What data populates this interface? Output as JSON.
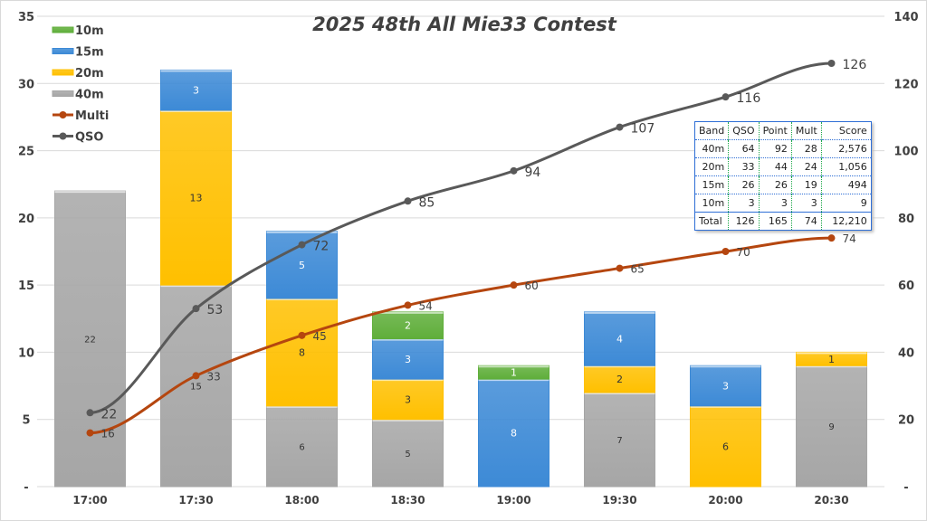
{
  "chart_data": {
    "type": "bar+line",
    "title": "2025 48th All Mie33 Contest",
    "categories": [
      "17:00",
      "17:30",
      "18:00",
      "18:30",
      "19:00",
      "19:30",
      "20:00",
      "20:30"
    ],
    "ylim": [
      0,
      35
    ],
    "y2lim": [
      0,
      140
    ],
    "yticks": [
      "-",
      "5",
      "10",
      "15",
      "20",
      "25",
      "30",
      "35"
    ],
    "y2ticks": [
      "-",
      "20",
      "40",
      "60",
      "80",
      "100",
      "120",
      "140"
    ],
    "grid": true,
    "legend": "top-left",
    "bar_series": [
      {
        "name": "40m",
        "color": "#a6a6a6",
        "values": [
          22,
          15,
          6,
          5,
          0,
          7,
          0,
          9
        ]
      },
      {
        "name": "20m",
        "color": "#ffc000",
        "values": [
          0,
          13,
          8,
          3,
          0,
          2,
          6,
          1
        ]
      },
      {
        "name": "15m",
        "color": "#3d8ad6",
        "values": [
          0,
          3,
          5,
          3,
          8,
          4,
          3,
          0
        ]
      },
      {
        "name": "10m",
        "color": "#5fae3a",
        "values": [
          0,
          0,
          0,
          2,
          1,
          0,
          0,
          0
        ]
      }
    ],
    "line_series": [
      {
        "name": "Multi",
        "color": "#b5460f",
        "axis": "right",
        "values": [
          16,
          33,
          45,
          54,
          60,
          65,
          70,
          74
        ]
      },
      {
        "name": "QSO",
        "color": "#595959",
        "axis": "right",
        "values": [
          22,
          53,
          72,
          85,
          94,
          107,
          116,
          126
        ]
      }
    ],
    "legend_order": [
      "10m",
      "15m",
      "20m",
      "40m",
      "Multi",
      "QSO"
    ]
  },
  "table": {
    "headers": [
      "Band",
      "QSO",
      "Point",
      "Mult",
      "Score"
    ],
    "rows": [
      [
        "40m",
        "64",
        "92",
        "28",
        "2,576"
      ],
      [
        "20m",
        "33",
        "44",
        "24",
        "1,056"
      ],
      [
        "15m",
        "26",
        "26",
        "19",
        "494"
      ],
      [
        "10m",
        "3",
        "3",
        "3",
        "9"
      ]
    ],
    "total": [
      "Total",
      "126",
      "165",
      "74",
      "12,210"
    ]
  }
}
